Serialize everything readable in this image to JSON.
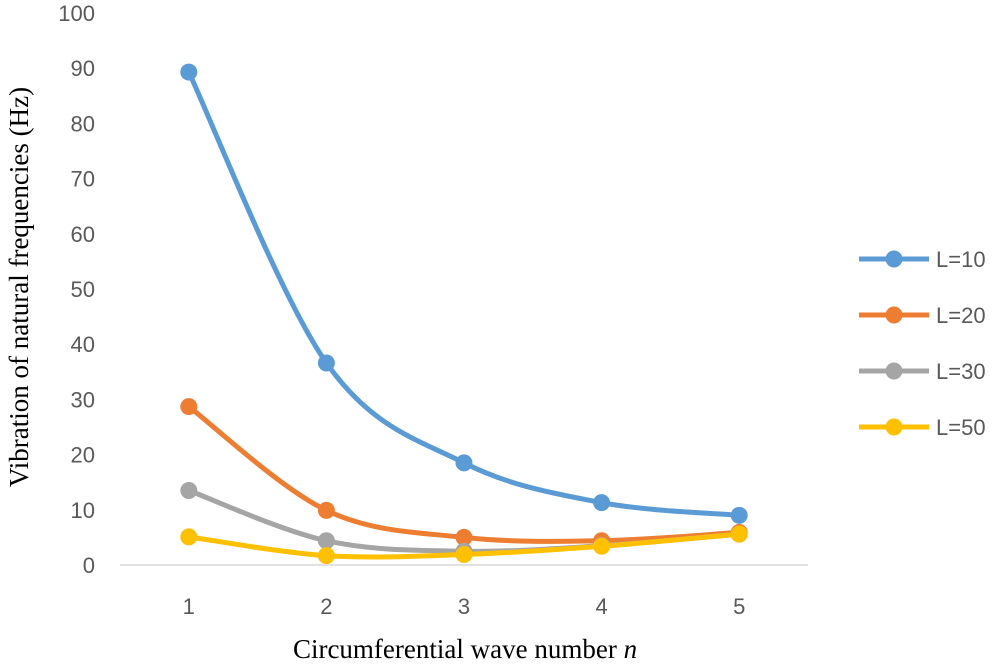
{
  "chart_data": {
    "type": "line",
    "title": "",
    "xlabel": "Circumferential wave number",
    "xlabel_var": "n",
    "ylabel": "Vibration of natural frequencies (Hz)",
    "categories": [
      "1",
      "2",
      "3",
      "4",
      "5"
    ],
    "x": [
      1,
      2,
      3,
      4,
      5
    ],
    "ylim": [
      0,
      100
    ],
    "yticks": [
      0,
      10,
      20,
      30,
      40,
      50,
      60,
      70,
      80,
      90,
      100
    ],
    "grid": false,
    "smooth": true,
    "legend_position": "right",
    "series": [
      {
        "name": "L=10",
        "color": "#5B9BD5",
        "values": [
          89.3,
          36.6,
          18.5,
          11.3,
          9.0
        ]
      },
      {
        "name": "L=20",
        "color": "#ED7D31",
        "values": [
          28.7,
          9.9,
          5.0,
          4.4,
          5.9
        ]
      },
      {
        "name": "L=30",
        "color": "#A5A5A5",
        "values": [
          13.5,
          4.4,
          2.5,
          3.5,
          5.6
        ]
      },
      {
        "name": "L=50",
        "color": "#FFC000",
        "values": [
          5.1,
          1.7,
          1.9,
          3.4,
          5.6
        ]
      }
    ]
  }
}
